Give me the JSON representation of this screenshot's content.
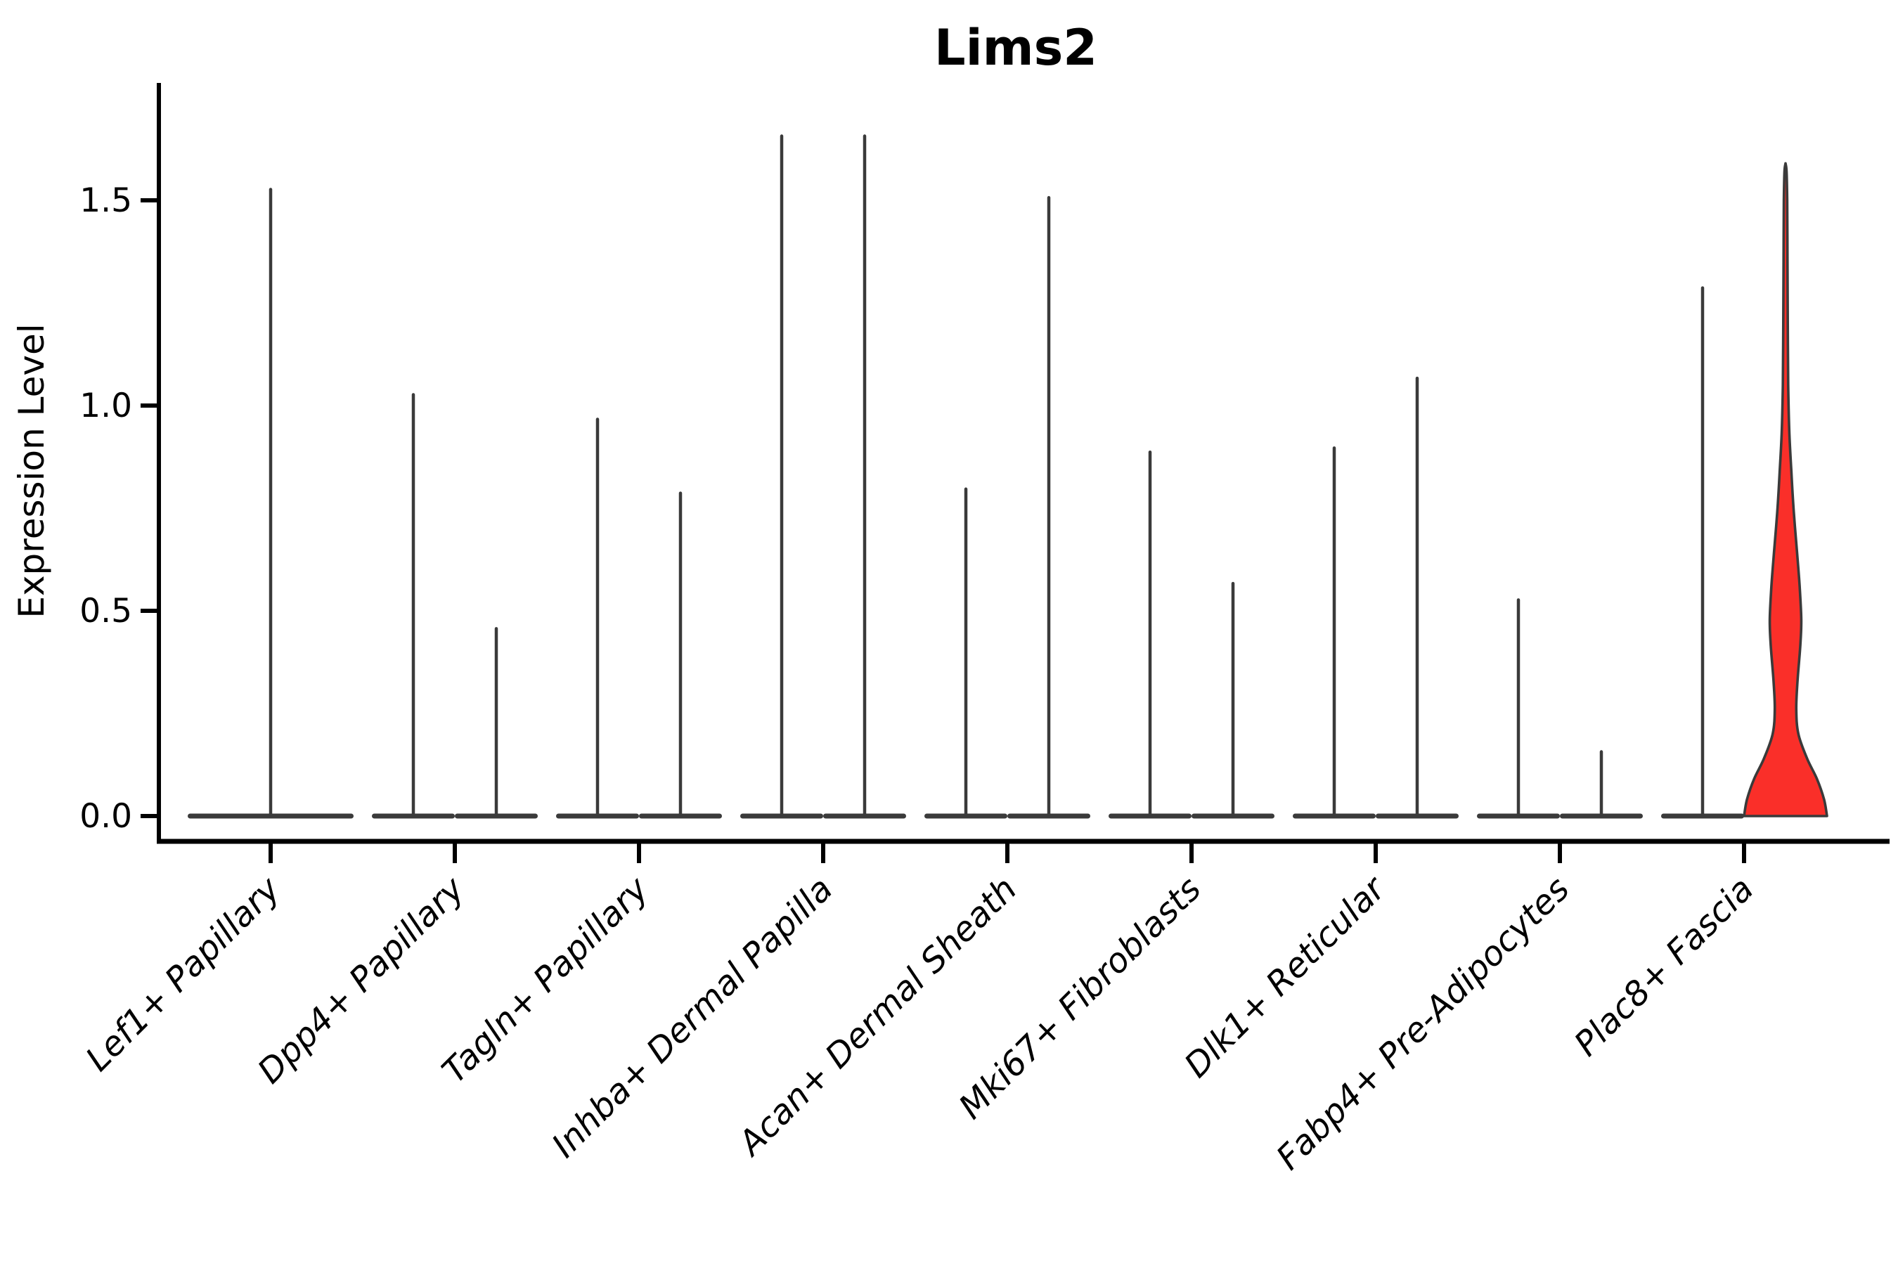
{
  "chart_data": {
    "type": "violin",
    "title": "Lims2",
    "ylabel": "Expression Level",
    "xlabel": "",
    "y_ticks": [
      "0.0",
      "0.5",
      "1.0",
      "1.5"
    ],
    "y_tick_values": [
      0.0,
      0.5,
      1.0,
      1.5
    ],
    "ylim": [
      -0.06,
      1.79
    ],
    "grid": false,
    "legend": "none",
    "categories": [
      "Lef1+ Papillary",
      "Dpp4+ Papillary",
      "Tagln+ Papillary",
      "Inhba+ Dermal Papilla",
      "Acan+ Dermal Sheath",
      "Mki67+ Fibroblasts",
      "Dlk1+ Reticular",
      "Fabp4+ Pre-Adipocytes",
      "Plac8+ Fascia"
    ],
    "violins": [
      {
        "category_index": 0,
        "slot": "full",
        "max_expression": 1.53,
        "shape": "collapsed-spike"
      },
      {
        "category_index": 1,
        "slot": "left",
        "max_expression": 1.03,
        "shape": "collapsed-spike"
      },
      {
        "category_index": 1,
        "slot": "right",
        "max_expression": 0.46,
        "shape": "collapsed-spike"
      },
      {
        "category_index": 2,
        "slot": "left",
        "max_expression": 0.97,
        "shape": "collapsed-spike"
      },
      {
        "category_index": 2,
        "slot": "right",
        "max_expression": 0.79,
        "shape": "collapsed-spike"
      },
      {
        "category_index": 3,
        "slot": "left",
        "max_expression": 1.66,
        "shape": "collapsed-spike"
      },
      {
        "category_index": 3,
        "slot": "right",
        "max_expression": 1.66,
        "shape": "collapsed-spike"
      },
      {
        "category_index": 4,
        "slot": "left",
        "max_expression": 0.8,
        "shape": "collapsed-spike"
      },
      {
        "category_index": 4,
        "slot": "right",
        "max_expression": 1.51,
        "shape": "collapsed-spike"
      },
      {
        "category_index": 5,
        "slot": "left",
        "max_expression": 0.89,
        "shape": "collapsed-spike"
      },
      {
        "category_index": 5,
        "slot": "right",
        "max_expression": 0.57,
        "shape": "collapsed-spike"
      },
      {
        "category_index": 6,
        "slot": "left",
        "max_expression": 0.9,
        "shape": "collapsed-spike"
      },
      {
        "category_index": 6,
        "slot": "right",
        "max_expression": 1.07,
        "shape": "collapsed-spike"
      },
      {
        "category_index": 7,
        "slot": "left",
        "max_expression": 0.53,
        "shape": "collapsed-spike"
      },
      {
        "category_index": 7,
        "slot": "right",
        "max_expression": 0.16,
        "shape": "collapsed-spike"
      },
      {
        "category_index": 8,
        "slot": "left",
        "max_expression": 1.29,
        "shape": "collapsed-spike"
      },
      {
        "category_index": 8,
        "slot": "right",
        "max_expression": 1.59,
        "shape": "filled-violin",
        "fill": "#fa2f29",
        "density_profile": [
          [
            0.0,
            1.0
          ],
          [
            0.04,
            0.93
          ],
          [
            0.09,
            0.76
          ],
          [
            0.14,
            0.52
          ],
          [
            0.2,
            0.31
          ],
          [
            0.26,
            0.26
          ],
          [
            0.33,
            0.29
          ],
          [
            0.42,
            0.36
          ],
          [
            0.48,
            0.38
          ],
          [
            0.56,
            0.34
          ],
          [
            0.64,
            0.28
          ],
          [
            0.74,
            0.2
          ],
          [
            0.84,
            0.14
          ],
          [
            0.94,
            0.09
          ],
          [
            1.05,
            0.065
          ],
          [
            1.2,
            0.055
          ],
          [
            1.35,
            0.048
          ],
          [
            1.5,
            0.04
          ],
          [
            1.57,
            0.025
          ],
          [
            1.59,
            0.0
          ]
        ]
      }
    ],
    "colors": {
      "violin_outline": "#3a3a3a",
      "highlight_fill": "#fa2f29",
      "axis": "#000000",
      "text": "#000000",
      "background": "#ffffff"
    }
  }
}
